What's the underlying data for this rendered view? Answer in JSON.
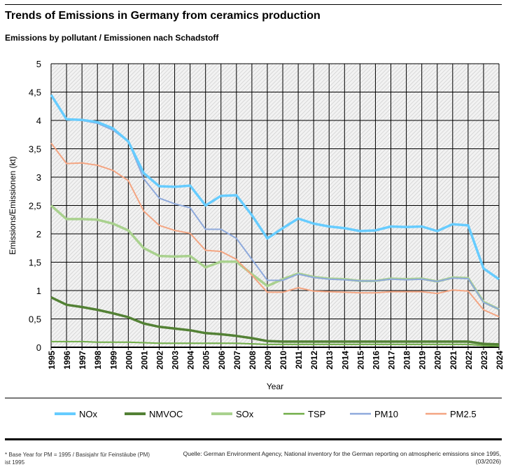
{
  "header": {
    "title": "Trends of Emissions in Germany from ceramics production",
    "subtitle": "Emissions by pollutant / Emissionen nach Schadstoff"
  },
  "footer": {
    "note": "* Base Year for PM = 1995 / Basisjahr für Feinstäube (PM) ist 1995",
    "source": "Quelle: German Environment Agency, National inventory for the German reporting on atmospheric emissions since 1995, (03/2026)"
  },
  "chart_data": {
    "type": "line",
    "title": "Trends of Emissions in Germany from ceramics production",
    "xlabel": "Year",
    "ylabel": "Emissions/Emissionen (kt)",
    "ylim": [
      0,
      5
    ],
    "yticks": [
      "0",
      "0,5",
      "1",
      "1,5",
      "2",
      "2,5",
      "3",
      "3,5",
      "4",
      "4,5",
      "5"
    ],
    "grid": true,
    "legend": "bottom",
    "x": [
      "1995",
      "1996",
      "1997",
      "1998",
      "1999",
      "2000",
      "2001",
      "2002",
      "2003",
      "2004",
      "2005",
      "2006",
      "2007",
      "2008",
      "2009",
      "2010",
      "2011",
      "2012",
      "2013",
      "2014",
      "2015",
      "2016",
      "2017",
      "2018",
      "2019",
      "2020",
      "2021",
      "2022",
      "2023",
      "2024"
    ],
    "series": [
      {
        "name": "NOx",
        "color": "#66ccff",
        "width": 3.5,
        "values": [
          4.45,
          4.02,
          4.01,
          3.97,
          3.86,
          3.63,
          3.07,
          2.84,
          2.83,
          2.85,
          2.5,
          2.67,
          2.68,
          2.33,
          1.92,
          2.1,
          2.27,
          2.18,
          2.13,
          2.1,
          2.05,
          2.06,
          2.13,
          2.12,
          2.13,
          2.05,
          2.17,
          2.15,
          1.39,
          1.2
        ]
      },
      {
        "name": "NMVOC",
        "color": "#538135",
        "width": 3.5,
        "values": [
          0.88,
          0.75,
          0.71,
          0.66,
          0.6,
          0.53,
          0.42,
          0.36,
          0.33,
          0.3,
          0.25,
          0.23,
          0.2,
          0.16,
          0.11,
          0.1,
          0.1,
          0.1,
          0.1,
          0.1,
          0.1,
          0.1,
          0.1,
          0.1,
          0.1,
          0.1,
          0.1,
          0.1,
          0.06,
          0.05
        ]
      },
      {
        "name": "SOx",
        "color": "#a9d18e",
        "width": 3.5,
        "values": [
          2.5,
          2.26,
          2.26,
          2.25,
          2.18,
          2.06,
          1.75,
          1.61,
          1.6,
          1.61,
          1.41,
          1.51,
          1.51,
          1.29,
          1.08,
          1.2,
          1.3,
          1.24,
          1.21,
          1.2,
          1.17,
          1.17,
          1.21,
          1.2,
          1.21,
          1.16,
          1.23,
          1.22,
          0.8,
          0.67
        ]
      },
      {
        "name": "TSP",
        "color": "#70ad47",
        "width": 2,
        "values": [
          0.1,
          0.1,
          0.1,
          0.09,
          0.09,
          0.09,
          0.08,
          0.07,
          0.07,
          0.07,
          0.07,
          0.07,
          0.07,
          0.06,
          0.05,
          0.05,
          0.05,
          0.05,
          0.05,
          0.05,
          0.05,
          0.05,
          0.05,
          0.05,
          0.05,
          0.05,
          0.05,
          0.05,
          0.03,
          0.02
        ]
      },
      {
        "name": "PM10",
        "color": "#8faadc",
        "width": 2,
        "values": [
          4.45,
          4.02,
          4.0,
          3.95,
          3.83,
          3.63,
          2.97,
          2.63,
          2.53,
          2.46,
          2.08,
          2.08,
          1.92,
          1.55,
          1.18,
          1.18,
          1.29,
          1.23,
          1.2,
          1.19,
          1.17,
          1.17,
          1.2,
          1.19,
          1.2,
          1.16,
          1.22,
          1.21,
          0.79,
          0.67
        ]
      },
      {
        "name": "PM2.5",
        "color": "#f4a582",
        "width": 2,
        "values": [
          3.6,
          3.24,
          3.25,
          3.21,
          3.12,
          2.94,
          2.4,
          2.15,
          2.06,
          2.01,
          1.71,
          1.69,
          1.55,
          1.27,
          0.97,
          0.97,
          1.05,
          0.99,
          0.98,
          0.97,
          0.96,
          0.96,
          0.98,
          0.98,
          0.98,
          0.95,
          1.01,
          0.99,
          0.66,
          0.54
        ]
      }
    ]
  }
}
